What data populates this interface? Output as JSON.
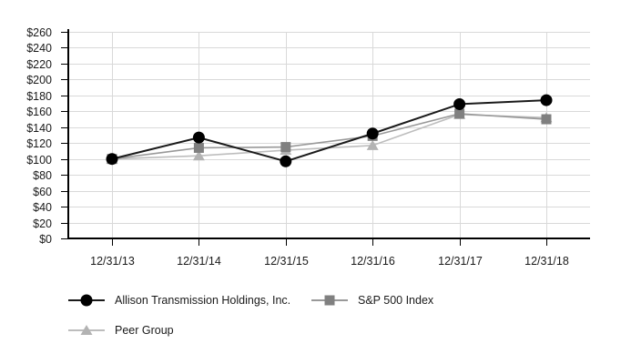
{
  "chart_data": {
    "type": "line",
    "title": "",
    "xlabel": "",
    "ylabel": "",
    "categories": [
      "12/31/13",
      "12/31/14",
      "12/31/15",
      "12/31/16",
      "12/31/17",
      "12/31/18"
    ],
    "series": [
      {
        "name": "Allison Transmission Holdings, Inc.",
        "marker": "circle",
        "marker_color": "#000000",
        "line_color": "#1a1a1a",
        "values": [
          100,
          127,
          97,
          132,
          169,
          174
        ]
      },
      {
        "name": "S&P 500 Index",
        "marker": "square",
        "marker_color": "#808080",
        "line_color": "#999999",
        "values": [
          100,
          114,
          115,
          129,
          157,
          150
        ]
      },
      {
        "name": "Peer Group",
        "marker": "triangle",
        "marker_color": "#b3b3b3",
        "line_color": "#bdbdbd",
        "values": [
          100,
          104,
          111,
          117,
          156,
          152
        ]
      }
    ],
    "ylim": [
      0,
      260
    ],
    "ytick_step": 20,
    "ytick_labels": [
      "$0",
      "$20",
      "$40",
      "$60",
      "$80",
      "$100",
      "$120",
      "$140",
      "$160",
      "$180",
      "$200",
      "$220",
      "$240",
      "$260"
    ],
    "grid": true,
    "gridline_color": "#d9d9d9",
    "axis_color": "#000000",
    "text_color": "#1a1a1a",
    "background_color": "#ffffff",
    "legend_position": "bottom-left"
  }
}
